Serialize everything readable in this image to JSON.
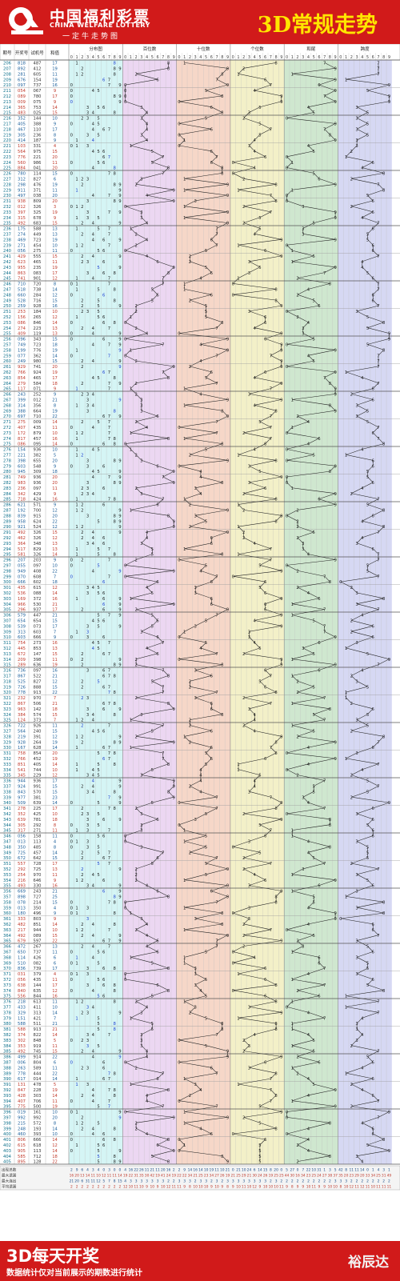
{
  "header": {
    "brand_cn": "中国福利彩票",
    "brand_en": "CHINA WELFARE LOTTERY",
    "brand_slogan": "一定牛走势图",
    "title": "3D常规走势"
  },
  "columns": {
    "period": "期号",
    "draw": "开奖号",
    "trial": "试机号",
    "sum": "和值",
    "groups": [
      "分布图",
      "百位数",
      "十位数",
      "个位数",
      "和尾",
      "跨度"
    ]
  },
  "stats": {
    "labels": [
      "出现总数",
      "最大遗漏",
      "最大连出",
      "平均遗漏"
    ],
    "rows": [
      [
        "2 9 6 4 3 4 0 3 0 0",
        "4 16 22 26 11 21 11 20 16 2",
        "2 9 14 16 14 10 19 11 10 21",
        "0 21 10 24 6 14 15 8 20 0",
        "5 27 0 7 22 10 31 1 3 5",
        "42 8 11 11 14 0 1 4 3 1"
      ],
      [
        "16 20 13 14 11 10 12 11 11 14",
        "19 22 31 35 30 42 19 41 24 19",
        "22 22 34 21 25 23 34 27 26 19",
        "21 25 29 21 30 24 26 19 25 25",
        "44 30 16 34 23 25 24 27 38 37",
        "35 20 23 29 20 33 34 25 31 49"
      ],
      [
        "21 20 6 31 11 12 5 7 8 15",
        "4 3 3 3 3 3 3 3 2 2",
        "3 3 3 2 3 3 2 3 2 3",
        "3 3 3 3 3 3 3 2 3 2",
        "2 2 2 2 2 2 2 2 2 3",
        "3 3 2 2 2 2 2 2 2 2"
      ],
      [
        "2 2 2 2 2 2 2 2 2 2",
        "12 10 11 10 9 10 9 10 12 11",
        "11 9 8 10 10 10 9 10 9 8",
        "9 10 11 10 12 9 10 10 10 11",
        "9 8 9 9 10 11 9 9 10 10",
        "8 10 12 11 12 11 10 11 11 11"
      ]
    ]
  },
  "footer": {
    "main": "3D每天开奖",
    "note": "数据统计仅对当前展示的期数进行统计",
    "brand": "裕辰达"
  },
  "colors": {
    "brand_red": "#d11a1a",
    "title_yellow": "#ffe600",
    "bg_distribution": "#d5f5f5",
    "bg_hundreds": "#ecd7f2",
    "bg_tens": "#f6d7c8",
    "bg_units": "#f3f0c8",
    "bg_sum_tail": "#cfe7cf",
    "bg_span": "#d6d8f3",
    "trend_line": "#222222",
    "cold_digit": "#d62020",
    "repeat_digit": "#1f3fd0"
  },
  "chart_data": {
    "type": "table",
    "title": "3D常规走势",
    "digit_columns": [
      "0",
      "1",
      "2",
      "3",
      "4",
      "5",
      "6",
      "7",
      "8",
      "9"
    ],
    "columns": [
      "期号",
      "开奖号",
      "试机号",
      "和值"
    ],
    "rows": [
      [
        "206",
        "818",
        "487",
        "17"
      ],
      [
        "207",
        "892",
        "412",
        "19"
      ],
      [
        "208",
        "281",
        "605",
        "11"
      ],
      [
        "209",
        "676",
        "154",
        "19"
      ],
      [
        "210",
        "097",
        "737",
        "16"
      ],
      [
        "211",
        "054",
        "067",
        "9"
      ],
      [
        "212",
        "089",
        "780",
        "17"
      ],
      [
        "213",
        "009",
        "075",
        "9"
      ],
      [
        "214",
        "365",
        "753",
        "14"
      ],
      [
        "215",
        "483",
        "025",
        "15"
      ],
      [
        "216",
        "352",
        "144",
        "10"
      ],
      [
        "217",
        "405",
        "388",
        "9"
      ],
      [
        "218",
        "467",
        "110",
        "17"
      ],
      [
        "219",
        "305",
        "236",
        "8"
      ],
      [
        "220",
        "414",
        "187",
        "9"
      ],
      [
        "221",
        "103",
        "331",
        "4"
      ],
      [
        "222",
        "564",
        "975",
        "15"
      ],
      [
        "223",
        "776",
        "221",
        "20"
      ],
      [
        "224",
        "560",
        "986",
        "11"
      ],
      [
        "225",
        "884",
        "041",
        "20"
      ],
      [
        "226",
        "780",
        "114",
        "15"
      ],
      [
        "227",
        "312",
        "827",
        "6"
      ],
      [
        "228",
        "298",
        "476",
        "19"
      ],
      [
        "229",
        "911",
        "371",
        "11"
      ],
      [
        "230",
        "497",
        "038",
        "20"
      ],
      [
        "231",
        "938",
        "809",
        "20"
      ],
      [
        "232",
        "012",
        "326",
        "3"
      ],
      [
        "233",
        "397",
        "325",
        "19"
      ],
      [
        "234",
        "315",
        "678",
        "9"
      ],
      [
        "235",
        "492",
        "683",
        "15"
      ],
      [
        "236",
        "175",
        "588",
        "13"
      ],
      [
        "237",
        "274",
        "449",
        "13"
      ],
      [
        "238",
        "469",
        "723",
        "19"
      ],
      [
        "239",
        "271",
        "454",
        "10"
      ],
      [
        "240",
        "056",
        "275",
        "11"
      ],
      [
        "241",
        "429",
        "555",
        "15"
      ],
      [
        "242",
        "623",
        "465",
        "11"
      ],
      [
        "243",
        "955",
        "235",
        "19"
      ],
      [
        "244",
        "863",
        "083",
        "17"
      ],
      [
        "245",
        "741",
        "901",
        "12"
      ],
      [
        "246",
        "710",
        "720",
        "8"
      ],
      [
        "247",
        "518",
        "738",
        "14"
      ],
      [
        "248",
        "660",
        "284",
        "12"
      ],
      [
        "249",
        "528",
        "716",
        "15"
      ],
      [
        "250",
        "259",
        "928",
        "16"
      ],
      [
        "251",
        "253",
        "184",
        "10"
      ],
      [
        "252",
        "156",
        "265",
        "12"
      ],
      [
        "253",
        "086",
        "846",
        "14"
      ],
      [
        "254",
        "274",
        "223",
        "13"
      ],
      [
        "255",
        "409",
        "119",
        "13"
      ],
      [
        "256",
        "096",
        "343",
        "15"
      ],
      [
        "257",
        "749",
        "723",
        "18"
      ],
      [
        "258",
        "199",
        "776",
        "19"
      ],
      [
        "259",
        "077",
        "362",
        "14"
      ],
      [
        "260",
        "249",
        "980",
        "15"
      ],
      [
        "261",
        "929",
        "741",
        "20"
      ],
      [
        "262",
        "766",
        "924",
        "19"
      ],
      [
        "263",
        "854",
        "465",
        "17"
      ],
      [
        "264",
        "279",
        "584",
        "18"
      ],
      [
        "265",
        "117",
        "071",
        "9"
      ],
      [
        "266",
        "243",
        "252",
        "9"
      ],
      [
        "267",
        "399",
        "012",
        "21"
      ],
      [
        "268",
        "314",
        "356",
        "8"
      ],
      [
        "269",
        "388",
        "664",
        "19"
      ],
      [
        "270",
        "697",
        "710",
        "22"
      ],
      [
        "271",
        "275",
        "009",
        "14"
      ],
      [
        "272",
        "407",
        "435",
        "11"
      ],
      [
        "273",
        "172",
        "879",
        "10"
      ],
      [
        "274",
        "817",
        "457",
        "16"
      ],
      [
        "275",
        "086",
        "095",
        "14"
      ],
      [
        "276",
        "154",
        "936",
        "10"
      ],
      [
        "277",
        "221",
        "382",
        "5"
      ],
      [
        "278",
        "398",
        "655",
        "20"
      ],
      [
        "279",
        "603",
        "548",
        "9"
      ],
      [
        "280",
        "945",
        "309",
        "18"
      ],
      [
        "281",
        "749",
        "936",
        "20"
      ],
      [
        "282",
        "983",
        "936",
        "20"
      ],
      [
        "283",
        "236",
        "097",
        "11"
      ],
      [
        "284",
        "342",
        "429",
        "9"
      ],
      [
        "285",
        "718",
        "424",
        "16"
      ],
      [
        "286",
        "621",
        "571",
        "9"
      ],
      [
        "287",
        "192",
        "700",
        "12"
      ],
      [
        "288",
        "839",
        "915",
        "20"
      ],
      [
        "289",
        "958",
        "624",
        "22"
      ],
      [
        "290",
        "921",
        "524",
        "12"
      ],
      [
        "291",
        "492",
        "326",
        "15"
      ],
      [
        "292",
        "462",
        "326",
        "12"
      ],
      [
        "293",
        "364",
        "348",
        "13"
      ],
      [
        "294",
        "517",
        "829",
        "13"
      ],
      [
        "295",
        "581",
        "326",
        "14"
      ],
      [
        "296",
        "207",
        "203",
        "9"
      ],
      [
        "297",
        "055",
        "097",
        "10"
      ],
      [
        "298",
        "949",
        "408",
        "22"
      ],
      [
        "299",
        "070",
        "608",
        "7"
      ],
      [
        "300",
        "666",
        "602",
        "18"
      ],
      [
        "301",
        "435",
        "615",
        "12"
      ],
      [
        "302",
        "536",
        "088",
        "14"
      ],
      [
        "303",
        "169",
        "372",
        "16"
      ],
      [
        "304",
        "966",
        "530",
        "21"
      ],
      [
        "305",
        "296",
        "937",
        "17"
      ],
      [
        "306",
        "579",
        "447",
        "21"
      ],
      [
        "307",
        "654",
        "654",
        "15"
      ],
      [
        "308",
        "539",
        "073",
        "17"
      ],
      [
        "309",
        "313",
        "603",
        "7"
      ],
      [
        "310",
        "603",
        "666",
        "9"
      ],
      [
        "311",
        "754",
        "273",
        "16"
      ],
      [
        "312",
        "445",
        "853",
        "13"
      ],
      [
        "313",
        "672",
        "147",
        "15"
      ],
      [
        "314",
        "209",
        "398",
        "11"
      ],
      [
        "315",
        "289",
        "636",
        "19"
      ],
      [
        "316",
        "736",
        "097",
        "16"
      ],
      [
        "317",
        "867",
        "522",
        "21"
      ],
      [
        "318",
        "525",
        "827",
        "12"
      ],
      [
        "319",
        "726",
        "888",
        "15"
      ],
      [
        "320",
        "778",
        "913",
        "22"
      ],
      [
        "321",
        "232",
        "970",
        "7"
      ],
      [
        "322",
        "867",
        "506",
        "21"
      ],
      [
        "323",
        "963",
        "142",
        "18"
      ],
      [
        "324",
        "384",
        "574",
        "15"
      ],
      [
        "325",
        "124",
        "373",
        "7"
      ],
      [
        "326",
        "722",
        "926",
        "11"
      ],
      [
        "327",
        "564",
        "240",
        "15"
      ],
      [
        "328",
        "219",
        "391",
        "12"
      ],
      [
        "329",
        "928",
        "264",
        "19"
      ],
      [
        "330",
        "167",
        "628",
        "14"
      ],
      [
        "331",
        "758",
        "854",
        "20"
      ],
      [
        "332",
        "766",
        "452",
        "19"
      ],
      [
        "333",
        "851",
        "405",
        "14"
      ],
      [
        "334",
        "541",
        "744",
        "10"
      ],
      [
        "335",
        "345",
        "229",
        "12"
      ],
      [
        "336",
        "944",
        "936",
        "17"
      ],
      [
        "337",
        "924",
        "991",
        "15"
      ],
      [
        "338",
        "843",
        "570",
        "15"
      ],
      [
        "339",
        "977",
        "381",
        "23"
      ],
      [
        "340",
        "509",
        "639",
        "14"
      ],
      [
        "341",
        "278",
        "225",
        "17"
      ],
      [
        "342",
        "352",
        "425",
        "10"
      ],
      [
        "343",
        "639",
        "781",
        "18"
      ],
      [
        "344",
        "305",
        "292",
        "8"
      ],
      [
        "345",
        "317",
        "271",
        "11"
      ],
      [
        "346",
        "056",
        "158",
        "11"
      ],
      [
        "347",
        "013",
        "113",
        "4"
      ],
      [
        "348",
        "350",
        "485",
        "8"
      ],
      [
        "349",
        "725",
        "457",
        "14"
      ],
      [
        "350",
        "672",
        "642",
        "15"
      ],
      [
        "351",
        "557",
        "728",
        "17"
      ],
      [
        "352",
        "292",
        "725",
        "13"
      ],
      [
        "353",
        "254",
        "970",
        "11"
      ],
      [
        "354",
        "216",
        "646",
        "9"
      ],
      [
        "355",
        "493",
        "330",
        "16"
      ],
      [
        "356",
        "669",
        "243",
        "21"
      ],
      [
        "357",
        "898",
        "727",
        "25"
      ],
      [
        "358",
        "078",
        "214",
        "15"
      ],
      [
        "359",
        "013",
        "350",
        "4"
      ],
      [
        "360",
        "180",
        "496",
        "9"
      ],
      [
        "361",
        "333",
        "803",
        "9"
      ],
      [
        "362",
        "482",
        "851",
        "14"
      ],
      [
        "363",
        "217",
        "944",
        "10"
      ],
      [
        "364",
        "492",
        "089",
        "15"
      ],
      [
        "365",
        "679",
        "597",
        "22"
      ],
      [
        "366",
        "472",
        "267",
        "13"
      ],
      [
        "367",
        "650",
        "737",
        "11"
      ],
      [
        "368",
        "114",
        "426",
        "6"
      ],
      [
        "369",
        "510",
        "082",
        "6"
      ],
      [
        "370",
        "836",
        "739",
        "17"
      ],
      [
        "371",
        "031",
        "379",
        "4"
      ],
      [
        "372",
        "056",
        "435",
        "11"
      ],
      [
        "373",
        "638",
        "144",
        "17"
      ],
      [
        "374",
        "840",
        "635",
        "12"
      ],
      [
        "375",
        "556",
        "844",
        "16"
      ],
      [
        "376",
        "218",
        "613",
        "11"
      ],
      [
        "377",
        "433",
        "411",
        "10"
      ],
      [
        "378",
        "329",
        "313",
        "14"
      ],
      [
        "379",
        "151",
        "421",
        "7"
      ],
      [
        "380",
        "588",
        "511",
        "21"
      ],
      [
        "381",
        "588",
        "913",
        "21"
      ],
      [
        "382",
        "374",
        "822",
        "14"
      ],
      [
        "383",
        "302",
        "848",
        "5"
      ],
      [
        "384",
        "353",
        "919",
        "11"
      ],
      [
        "385",
        "492",
        "745",
        "15"
      ],
      [
        "386",
        "499",
        "914",
        "22"
      ],
      [
        "387",
        "006",
        "804",
        "6"
      ],
      [
        "388",
        "263",
        "589",
        "11"
      ],
      [
        "389",
        "778",
        "444",
        "22"
      ],
      [
        "390",
        "617",
        "014",
        "14"
      ],
      [
        "391",
        "131",
        "478",
        "5"
      ],
      [
        "392",
        "847",
        "228",
        "19"
      ],
      [
        "393",
        "428",
        "303",
        "14"
      ],
      [
        "394",
        "407",
        "706",
        "11"
      ],
      [
        "395",
        "775",
        "500",
        "19"
      ],
      [
        "396",
        "019",
        "161",
        "10"
      ],
      [
        "397",
        "992",
        "992",
        "20"
      ],
      [
        "398",
        "215",
        "572",
        "8"
      ],
      [
        "399",
        "248",
        "193",
        "14"
      ],
      [
        "400",
        "460",
        "393",
        "10"
      ],
      [
        "401",
        "806",
        "666",
        "14"
      ],
      [
        "402",
        "615",
        "618",
        "12"
      ],
      [
        "403",
        "905",
        "113",
        "14"
      ],
      [
        "404",
        "585",
        "712",
        "18"
      ],
      [
        "405",
        "895",
        "128",
        "22"
      ]
    ]
  }
}
